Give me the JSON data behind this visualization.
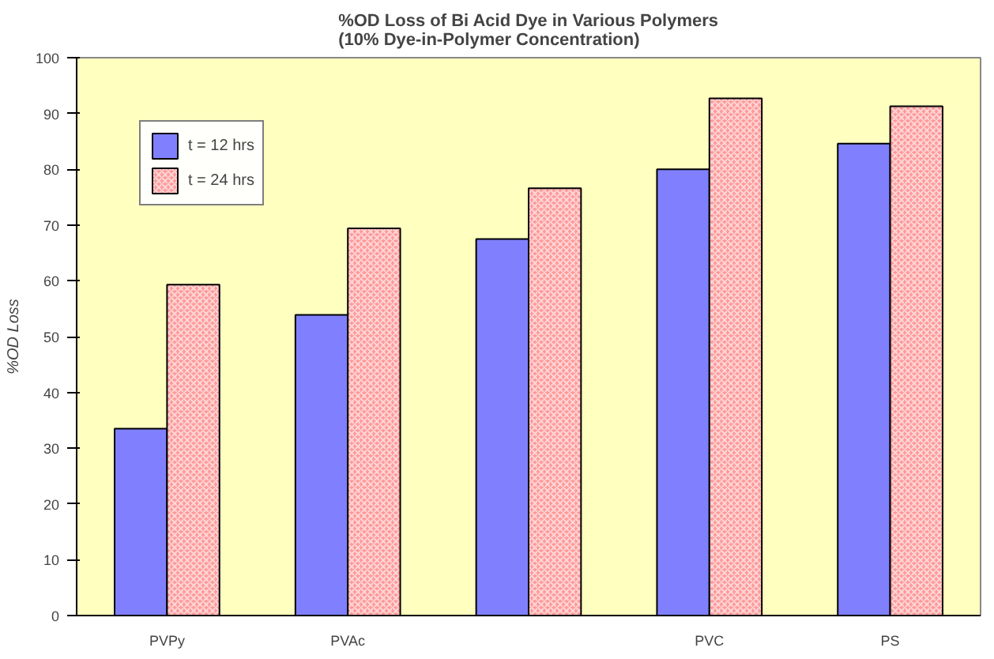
{
  "chart_data": {
    "type": "bar",
    "title": "%OD Loss of Bi Acid Dye in Various Polymers\n(10% Dye-in-Polymer Concentration)",
    "ylabel": "%OD Loss",
    "categories": [
      "PVPy",
      "PVAc",
      null,
      "PVC",
      "PS"
    ],
    "series": [
      {
        "name": "t = 12 hrs",
        "color": "#8080ff",
        "values": [
          33.5,
          53.9,
          67.5,
          80.0,
          84.6
        ]
      },
      {
        "name": "t = 24 hrs",
        "color": "#ff9999",
        "values": [
          59.3,
          69.4,
          76.6,
          92.7,
          91.3
        ]
      }
    ],
    "ylim": [
      0,
      100
    ],
    "yticks": [
      0,
      10,
      20,
      30,
      40,
      50,
      60,
      70,
      80,
      90,
      100
    ],
    "grid": false,
    "legend": "top left"
  }
}
